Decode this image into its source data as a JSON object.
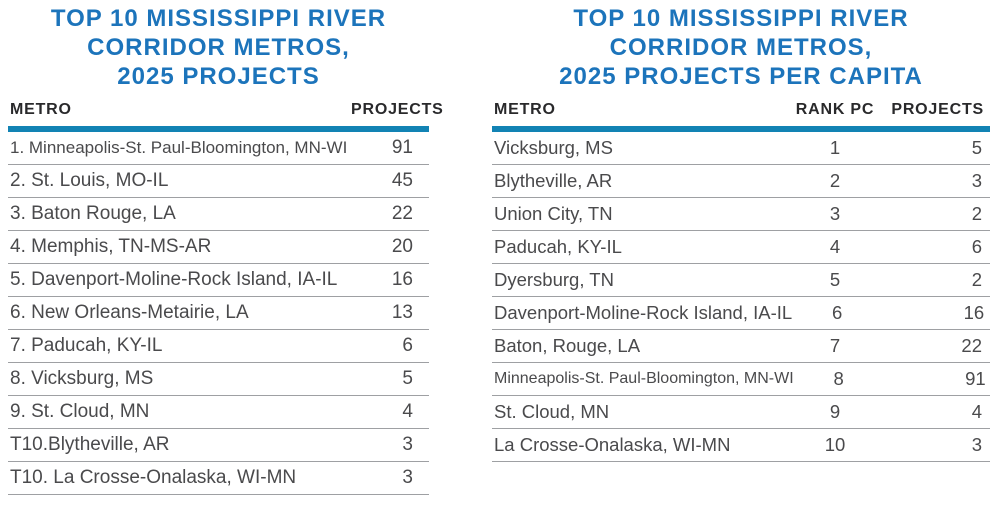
{
  "colors": {
    "title_blue": "#1C74BB",
    "bar_blue": "#1283B4",
    "header_text": "#29292B",
    "row_text": "#4A4A4C",
    "divider_gray": "#9EA0A3"
  },
  "chart_data": [
    {
      "type": "table",
      "title": "TOP 10 MISSISSIPPI RIVER CORRIDOR METROS, 2025 PROJECTS",
      "title_lines": [
        "TOP 10 MISSISSIPPI RIVER",
        "CORRIDOR METROS,",
        "2025 PROJECTS"
      ],
      "columns": [
        "METRO",
        "PROJECTS"
      ],
      "rows": [
        [
          "1. Minneapolis-St. Paul-Bloomington, MN-WI",
          91
        ],
        [
          "2. St. Louis, MO-IL",
          45
        ],
        [
          "3. Baton Rouge, LA",
          22
        ],
        [
          "4. Memphis, TN-MS-AR",
          20
        ],
        [
          "5. Davenport-Moline-Rock Island, IA-IL",
          16
        ],
        [
          "6. New Orleans-Metairie, LA",
          13
        ],
        [
          "7. Paducah, KY-IL",
          6
        ],
        [
          "8. Vicksburg, MS",
          5
        ],
        [
          "9. St. Cloud, MN",
          4
        ],
        [
          "T10.Blytheville, AR",
          3
        ],
        [
          "T10. La Crosse-Onalaska, WI-MN",
          3
        ]
      ]
    },
    {
      "type": "table",
      "title": "TOP 10 MISSISSIPPI RIVER CORRIDOR METROS, 2025 PROJECTS PER CAPITA",
      "title_lines": [
        "TOP 10 MISSISSIPPI RIVER",
        "CORRIDOR METROS,",
        "2025 PROJECTS PER CAPITA"
      ],
      "columns": [
        "METRO",
        "RANK PC",
        "PROJECTS"
      ],
      "rows": [
        [
          "Vicksburg, MS",
          1,
          5
        ],
        [
          "Blytheville, AR",
          2,
          3
        ],
        [
          "Union City, TN",
          3,
          2
        ],
        [
          "Paducah, KY-IL",
          4,
          6
        ],
        [
          "Dyersburg, TN",
          5,
          2
        ],
        [
          "Davenport-Moline-Rock Island, IA-IL",
          6,
          16
        ],
        [
          "Baton, Rouge, LA",
          7,
          22
        ],
        [
          "Minneapolis-St. Paul-Bloomington, MN-WI",
          8,
          91
        ],
        [
          "St. Cloud, MN",
          9,
          4
        ],
        [
          "La Crosse-Onalaska, WI-MN",
          10,
          3
        ]
      ]
    }
  ]
}
